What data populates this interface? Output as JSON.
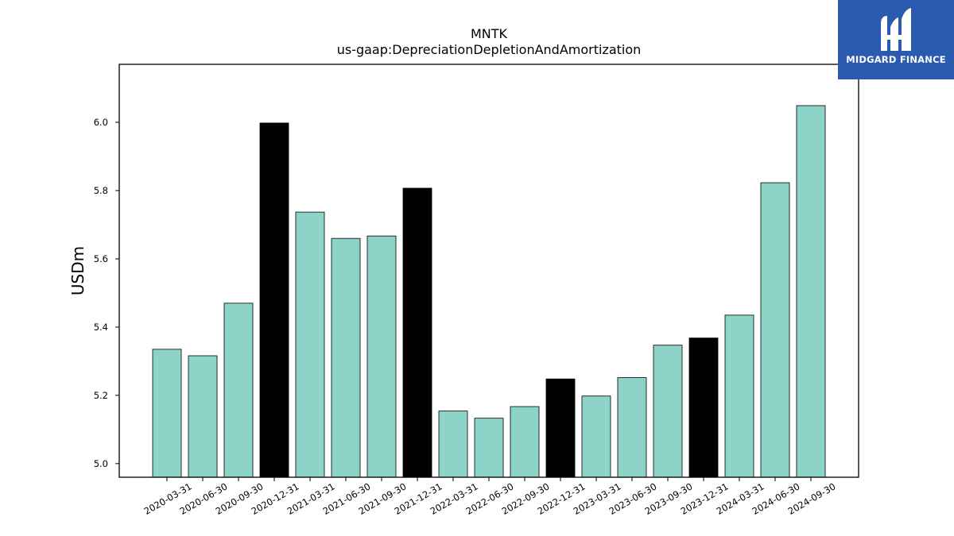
{
  "chart_data": {
    "type": "bar",
    "title": "MNTK",
    "subtitle": "us-gaap:DepreciationDepletionAndAmortization",
    "xlabel": "",
    "ylabel": "USDm",
    "ylim": [
      4.96,
      6.17
    ],
    "yticks": [
      "5.0",
      "5.2",
      "5.4",
      "5.6",
      "5.8",
      "6.0"
    ],
    "grid": false,
    "categories": [
      "2020-03-31",
      "2020-06-30",
      "2020-09-30",
      "2020-12-31",
      "2021-03-31",
      "2021-06-30",
      "2021-09-30",
      "2021-12-31",
      "2022-03-31",
      "2022-06-30",
      "2022-09-30",
      "2022-12-31",
      "2023-03-31",
      "2023-06-30",
      "2023-09-30",
      "2023-12-31",
      "2024-03-31",
      "2024-06-30",
      "2024-09-30"
    ],
    "values": [
      5.335,
      5.316,
      5.47,
      5.998,
      5.737,
      5.66,
      5.667,
      5.807,
      5.154,
      5.133,
      5.167,
      5.248,
      5.198,
      5.252,
      5.347,
      5.368,
      5.435,
      5.823,
      6.049
    ],
    "colors": [
      "#8dd3c7",
      "#8dd3c7",
      "#8dd3c7",
      "#000000",
      "#8dd3c7",
      "#8dd3c7",
      "#8dd3c7",
      "#000000",
      "#8dd3c7",
      "#8dd3c7",
      "#8dd3c7",
      "#000000",
      "#8dd3c7",
      "#8dd3c7",
      "#8dd3c7",
      "#000000",
      "#8dd3c7",
      "#8dd3c7",
      "#8dd3c7"
    ]
  },
  "logo": {
    "text": "MIDGARD FINANCE",
    "background": "#2b5bb0"
  }
}
